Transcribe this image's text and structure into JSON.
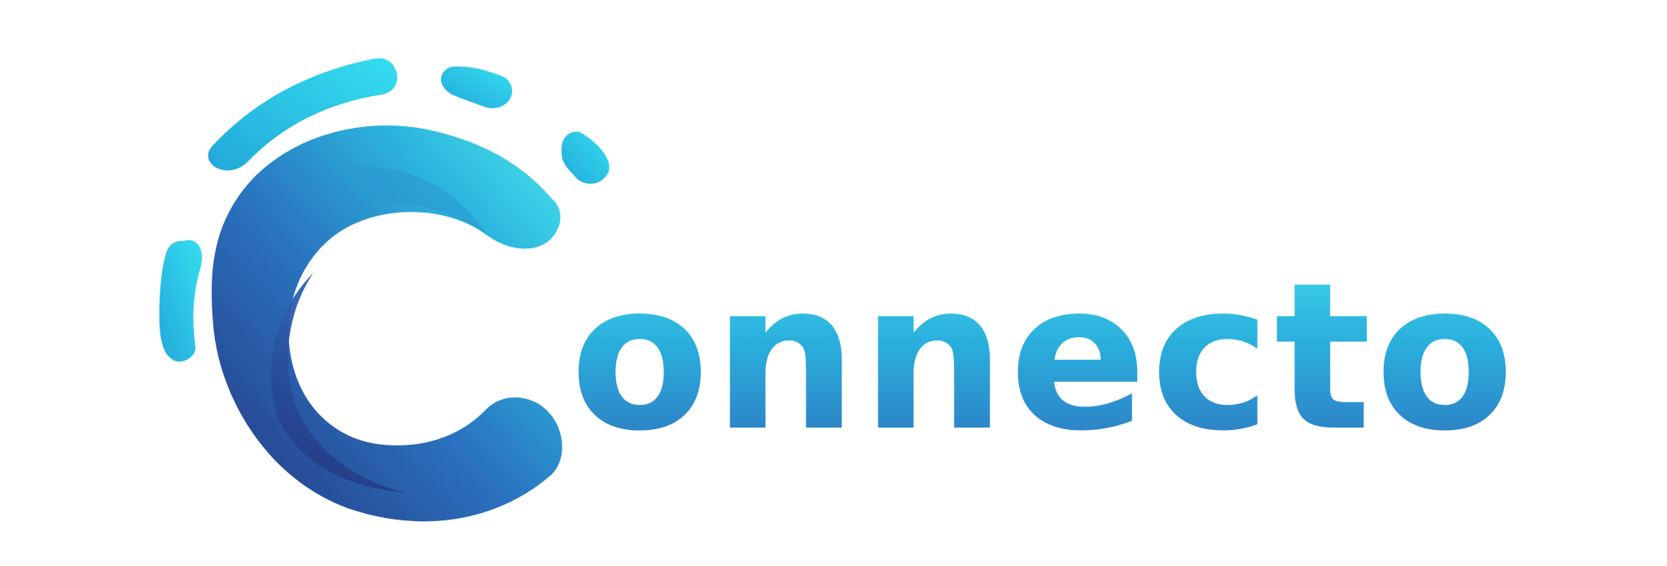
{
  "brand": {
    "wordmark": "onnecto",
    "logo_letter": "C",
    "colors": {
      "cyan": "#46e6ef",
      "sky": "#2ab2dc",
      "blue": "#2f73c0",
      "navy": "#26357f",
      "background": "#ffffff"
    },
    "icons": [
      "swirl-c-icon",
      "signal-arcs-icon"
    ]
  }
}
